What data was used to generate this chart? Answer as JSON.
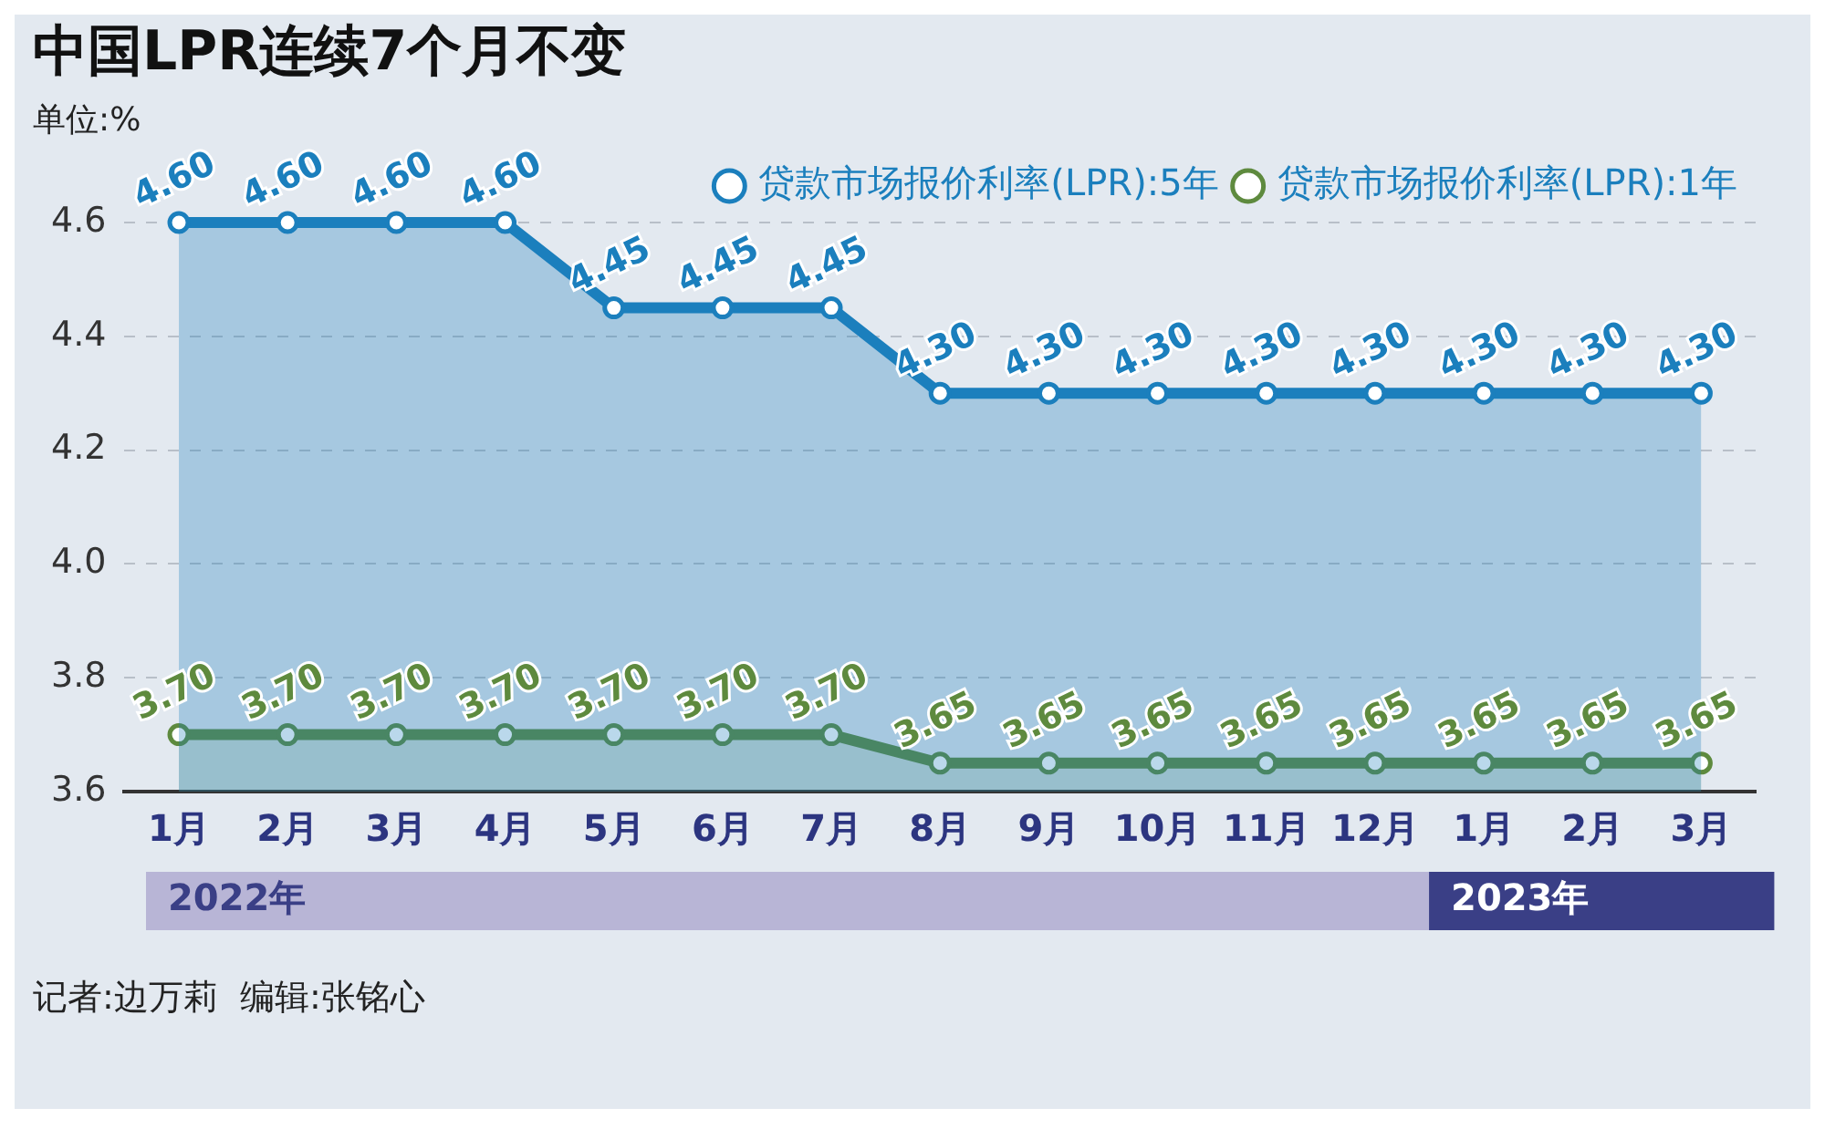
{
  "chart_data": {
    "type": "area",
    "title": "中国LPR连续7个月不变",
    "ylabel": "单位:%",
    "categories": [
      "1月",
      "2月",
      "3月",
      "4月",
      "5月",
      "6月",
      "7月",
      "8月",
      "9月",
      "10月",
      "11月",
      "12月",
      "1月",
      "2月",
      "3月"
    ],
    "series": [
      {
        "name": "贷款市场报价利率(LPR):5年",
        "color": "#1b7fbd",
        "values": [
          4.6,
          4.6,
          4.6,
          4.6,
          4.45,
          4.45,
          4.45,
          4.3,
          4.3,
          4.3,
          4.3,
          4.3,
          4.3,
          4.3,
          4.3
        ],
        "value_labels": [
          "4.60",
          "4.60",
          "4.60",
          "4.60",
          "4.45",
          "4.45",
          "4.45",
          "4.30",
          "4.30",
          "4.30",
          "4.30",
          "4.30",
          "4.30",
          "4.30",
          "4.30"
        ]
      },
      {
        "name": "贷款市场报价利率(LPR):1年",
        "color": "#5e8a3e",
        "values": [
          3.7,
          3.7,
          3.7,
          3.7,
          3.7,
          3.7,
          3.7,
          3.65,
          3.65,
          3.65,
          3.65,
          3.65,
          3.65,
          3.65,
          3.65
        ],
        "value_labels": [
          "3.70",
          "3.70",
          "3.70",
          "3.70",
          "3.70",
          "3.70",
          "3.70",
          "3.65",
          "3.65",
          "3.65",
          "3.65",
          "3.65",
          "3.65",
          "3.65",
          "3.65"
        ]
      }
    ],
    "ylim": [
      3.6,
      4.6
    ],
    "yticks": [
      3.6,
      3.8,
      {
        "value": 4.0,
        "label": "4.0"
      },
      4.2,
      4.4,
      4.6
    ],
    "grid": "y",
    "legend": "top right",
    "marker": "circle",
    "line_style": "solid",
    "annotations": [
      "2022年",
      "2023年",
      "记者:边万莉  编辑:张铭心"
    ]
  }
}
